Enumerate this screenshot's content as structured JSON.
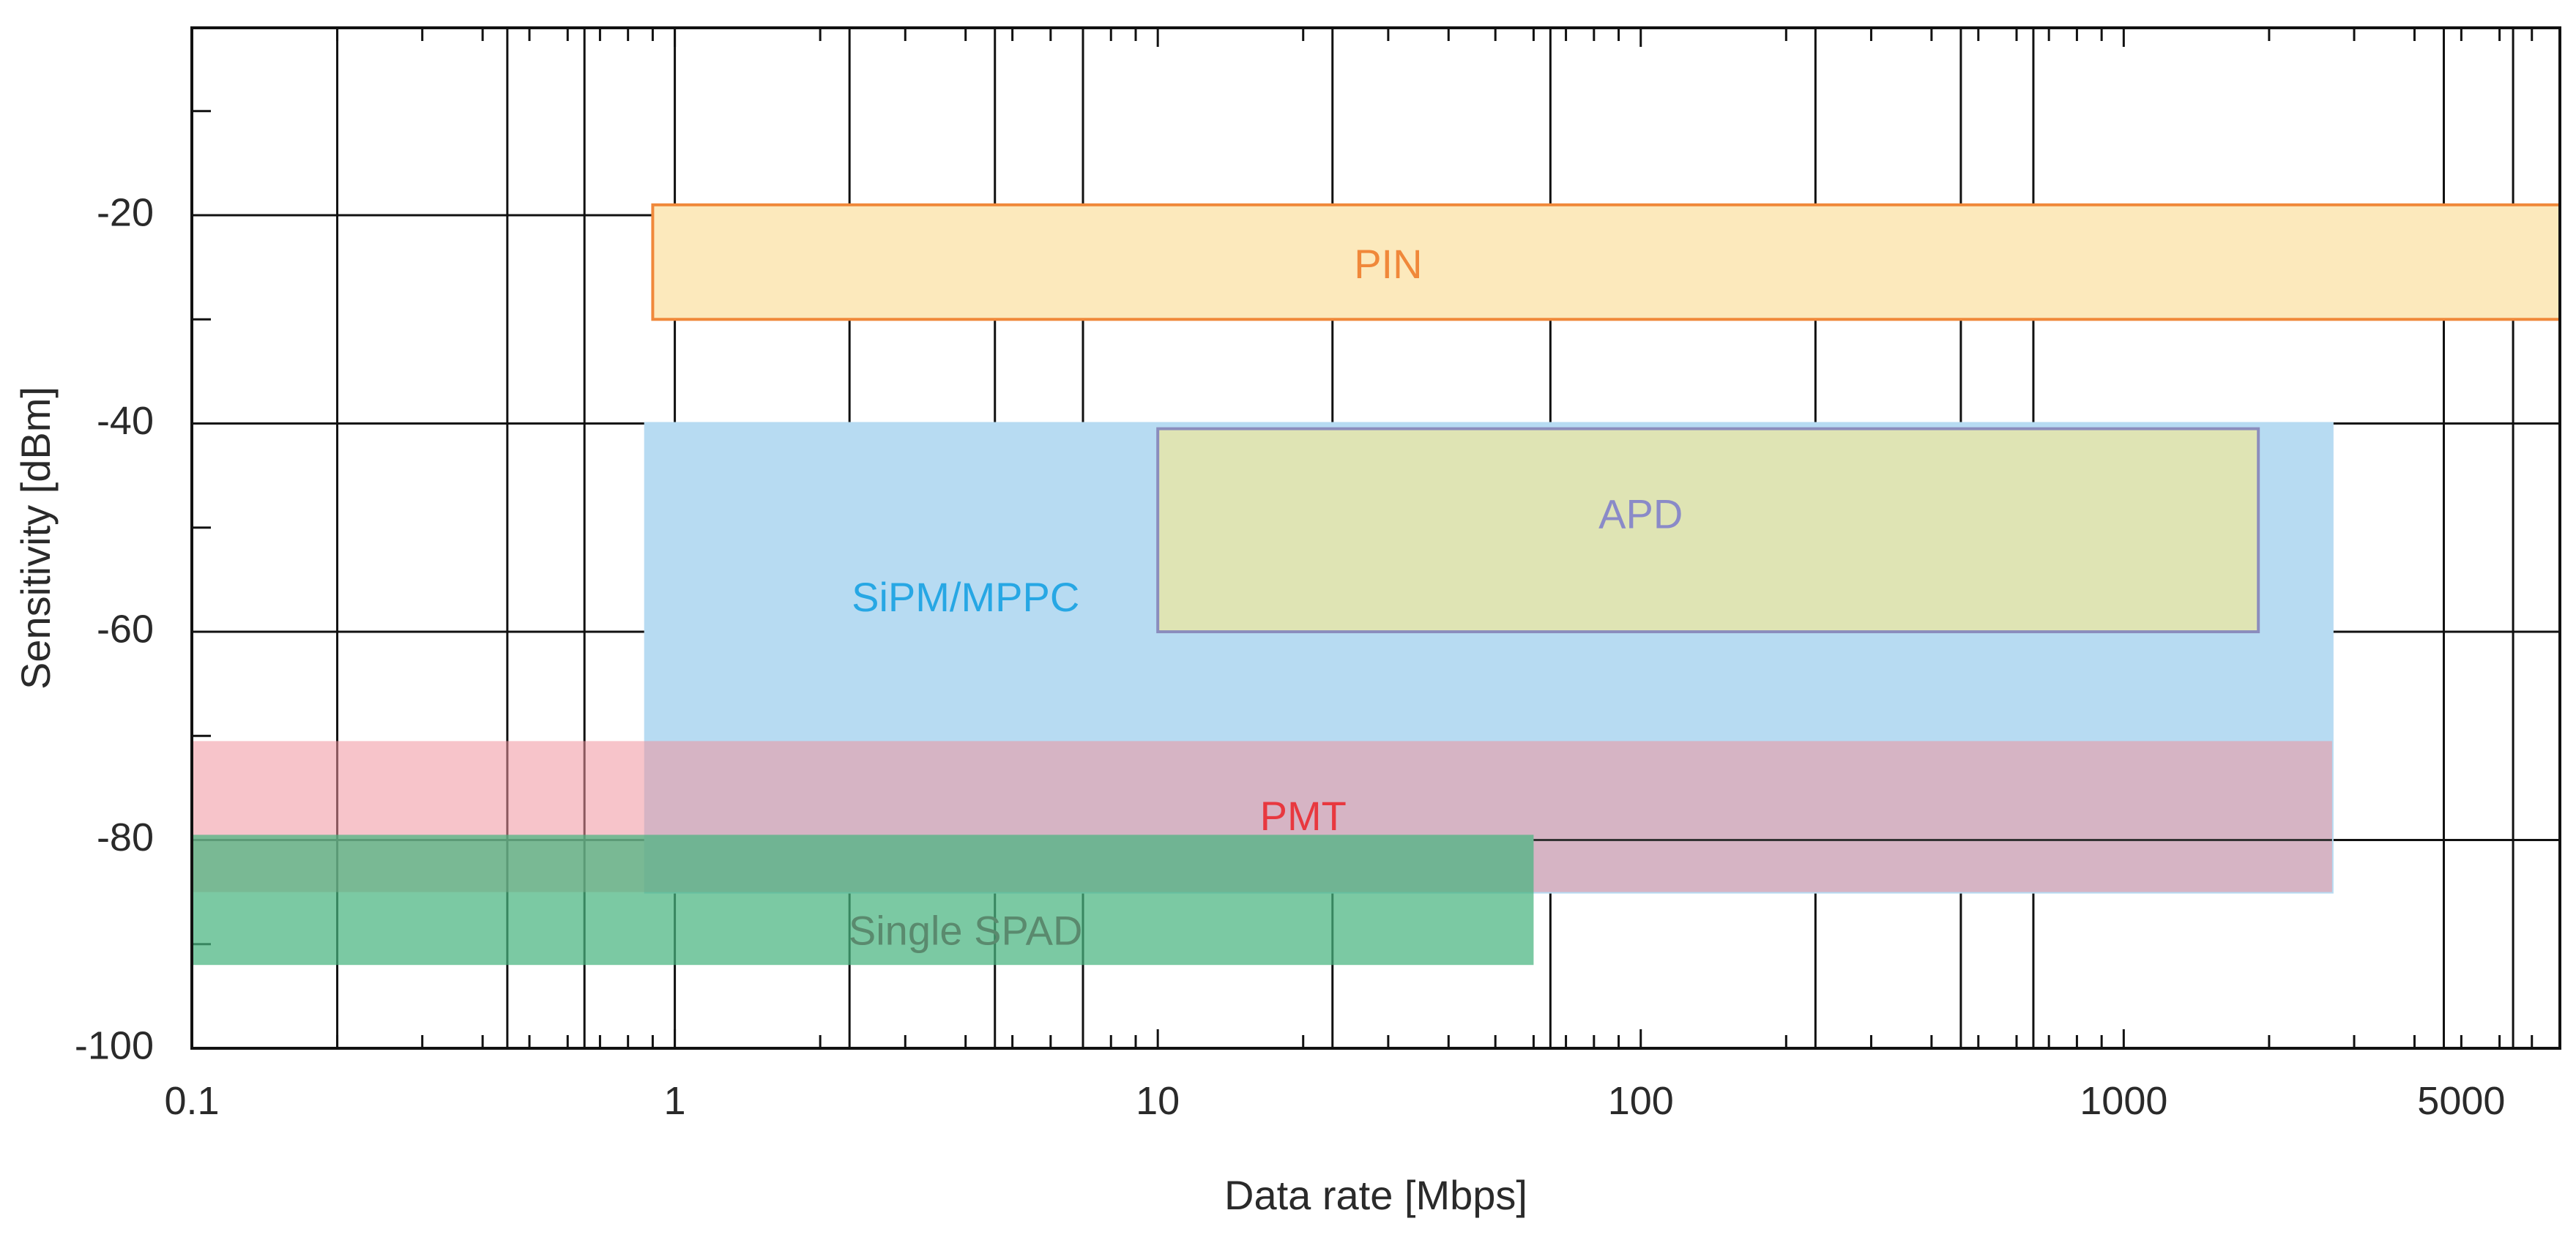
{
  "chart_data": {
    "type": "bar",
    "title": "",
    "xlabel": "Data rate [Mbps]",
    "ylabel": "Sensitivity [dBm]",
    "x_scale": "log",
    "xlim": [
      0.1,
      8000
    ],
    "ylim": [
      -100,
      -2
    ],
    "x_ticks": [
      {
        "value": 0.1,
        "label": "0.1"
      },
      {
        "value": 1,
        "label": "1"
      },
      {
        "value": 10,
        "label": "10"
      },
      {
        "value": 100,
        "label": "100"
      },
      {
        "value": 1000,
        "label": "1000"
      },
      {
        "value": 5000,
        "label": "5000"
      }
    ],
    "y_ticks": [
      {
        "value": -20,
        "label": "-20"
      },
      {
        "value": -40,
        "label": "-40"
      },
      {
        "value": -60,
        "label": "-60"
      },
      {
        "value": -80,
        "label": "-80"
      },
      {
        "value": -100,
        "label": "-100"
      }
    ],
    "y_minor_ticks": [
      -10,
      -30,
      -50,
      -70,
      -90
    ],
    "x_gridlines": [
      0.2,
      0.45,
      0.65,
      1,
      2.3,
      4.6,
      7,
      23,
      65,
      230,
      460,
      650,
      4600,
      6400
    ],
    "y_gridlines": [
      -20,
      -40,
      -60,
      -80
    ],
    "grid": true,
    "legend": "none",
    "series": [
      {
        "name": "PIN",
        "x_range": [
          0.9,
          8000
        ],
        "y_range": [
          -30,
          -19
        ],
        "fill": "#fce9bc",
        "stroke": "#f0883a",
        "label_color": "#f0883a",
        "label_at": [
          30,
          -25
        ]
      },
      {
        "name": "SiPM/MPPC",
        "x_range": [
          0.87,
          2700
        ],
        "y_range": [
          -85,
          -40
        ],
        "fill": "#b7dbf2",
        "stroke": "#b7dbf2",
        "label_color": "#27a7e4",
        "label_at": [
          4,
          -57
        ]
      },
      {
        "name": "APD",
        "x_range": [
          10,
          1900
        ],
        "y_range": [
          -60,
          -40.5
        ],
        "fill": "#dfe4b4",
        "stroke": "#8b8dbd",
        "label_color": "#8a8ac8",
        "label_at": [
          100,
          -49
        ]
      },
      {
        "name": "PMT",
        "x_range": [
          0.1,
          2700
        ],
        "y_range": [
          -85,
          -70.5
        ],
        "fill": "rgba(241, 148, 158, 0.55)",
        "stroke": "none",
        "label_color": "#e8383f",
        "label_at": [
          20,
          -78
        ]
      },
      {
        "name": "Single SPAD",
        "x_range": [
          0.1,
          60
        ],
        "y_range": [
          -92,
          -79.5
        ],
        "fill": "rgba(72, 180, 128, 0.72)",
        "stroke": "none",
        "label_color": "#5a8a6e",
        "label_at": [
          4,
          -89
        ]
      }
    ]
  }
}
